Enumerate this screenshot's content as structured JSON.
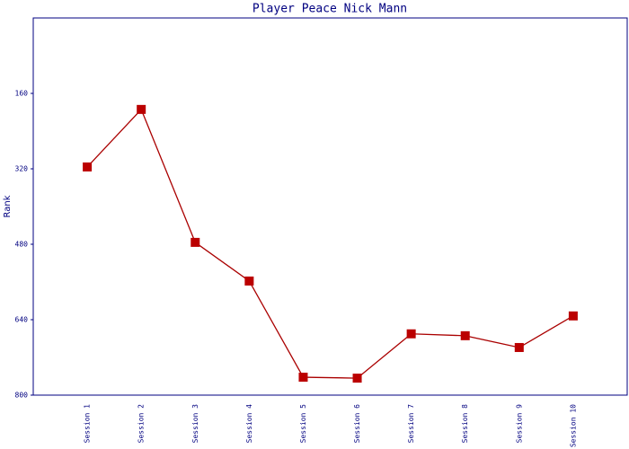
{
  "chart_data": {
    "type": "line",
    "title": "Player Peace Nick Mann",
    "y_label": "Rank",
    "categories": [
      "Session 1",
      "Session 2",
      "Session 3",
      "Session 4",
      "Session 5",
      "Session 6",
      "Session 7",
      "Session 8",
      "Session 9",
      "Session 10"
    ],
    "values": [
      316,
      194,
      476,
      558,
      762,
      764,
      670,
      674,
      699,
      632
    ],
    "color": "#aa0000",
    "marker_color": "#bb0000",
    "axis_color": "#000080",
    "ylim": [
      800,
      0
    ],
    "yticks": [
      160,
      320,
      480,
      640,
      800
    ],
    "grid": false
  }
}
